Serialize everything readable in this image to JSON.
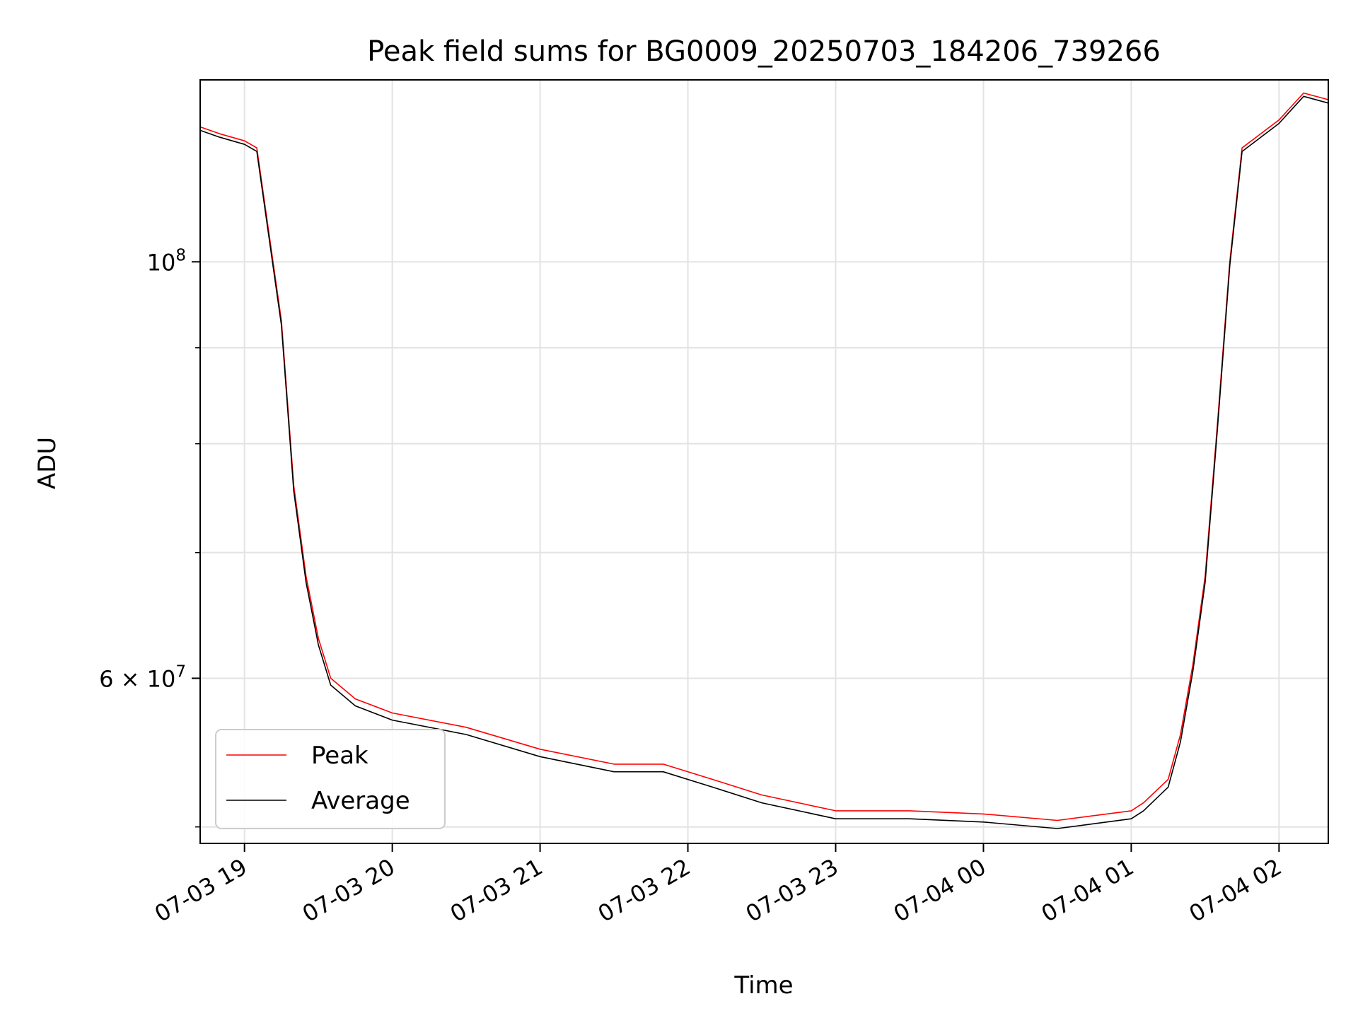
{
  "chart_data": {
    "type": "line",
    "title": "Peak field sums for BG0009_20250703_184206_739266",
    "xlabel": "Time",
    "ylabel": "ADU",
    "y_scale": "log",
    "x_range": [
      "2025-07-03 18:42",
      "2025-07-04 02:20"
    ],
    "ylim": [
      49000000,
      125000000
    ],
    "grid": true,
    "legend_position": "lower-left",
    "x_ticks": [
      {
        "t": "2025-07-03 19:00",
        "label": "07-03 19"
      },
      {
        "t": "2025-07-03 20:00",
        "label": "07-03 20"
      },
      {
        "t": "2025-07-03 21:00",
        "label": "07-03 21"
      },
      {
        "t": "2025-07-03 22:00",
        "label": "07-03 22"
      },
      {
        "t": "2025-07-03 23:00",
        "label": "07-03 23"
      },
      {
        "t": "2025-07-04 00:00",
        "label": "07-04 00"
      },
      {
        "t": "2025-07-04 01:00",
        "label": "07-04 01"
      },
      {
        "t": "2025-07-04 02:00",
        "label": "07-04 02"
      }
    ],
    "y_major_ticks": [
      {
        "value": 100000000,
        "base": "10",
        "exp": "8",
        "prefix": ""
      },
      {
        "value": 60000000,
        "base": "10",
        "exp": "7",
        "prefix": "6 × "
      }
    ],
    "y_minor_ticks": [
      50000000,
      70000000,
      80000000,
      90000000
    ],
    "series": [
      {
        "name": "Peak",
        "color": "#ff0000",
        "x": [
          "2025-07-03 18:42",
          "2025-07-03 18:50",
          "2025-07-03 19:00",
          "2025-07-03 19:05",
          "2025-07-03 19:15",
          "2025-07-03 19:20",
          "2025-07-03 19:25",
          "2025-07-03 19:30",
          "2025-07-03 19:35",
          "2025-07-03 19:45",
          "2025-07-03 20:00",
          "2025-07-03 20:30",
          "2025-07-03 21:00",
          "2025-07-03 21:30",
          "2025-07-03 21:50",
          "2025-07-03 22:10",
          "2025-07-03 22:30",
          "2025-07-03 23:00",
          "2025-07-03 23:30",
          "2025-07-04 00:00",
          "2025-07-04 00:30",
          "2025-07-04 01:00",
          "2025-07-04 01:05",
          "2025-07-04 01:15",
          "2025-07-04 01:20",
          "2025-07-04 01:25",
          "2025-07-04 01:30",
          "2025-07-04 01:35",
          "2025-07-04 01:40",
          "2025-07-04 01:45",
          "2025-07-04 02:00",
          "2025-07-04 02:05",
          "2025-07-04 02:10",
          "2025-07-04 02:20"
        ],
        "y": [
          118000000,
          117000000,
          116000000,
          115000000,
          93000000,
          76000000,
          68000000,
          63000000,
          60000000,
          58500000,
          57500000,
          56500000,
          55000000,
          54000000,
          54000000,
          53000000,
          52000000,
          51000000,
          51000000,
          50800000,
          50400000,
          51000000,
          51500000,
          53000000,
          56000000,
          61000000,
          68000000,
          82000000,
          100000000,
          115000000,
          119000000,
          121000000,
          123000000,
          122000000
        ]
      },
      {
        "name": "Average",
        "color": "#000000",
        "x": [
          "2025-07-03 18:42",
          "2025-07-03 18:50",
          "2025-07-03 19:00",
          "2025-07-03 19:05",
          "2025-07-03 19:15",
          "2025-07-03 19:20",
          "2025-07-03 19:25",
          "2025-07-03 19:30",
          "2025-07-03 19:35",
          "2025-07-03 19:45",
          "2025-07-03 20:00",
          "2025-07-03 20:30",
          "2025-07-03 21:00",
          "2025-07-03 21:30",
          "2025-07-03 21:50",
          "2025-07-03 22:10",
          "2025-07-03 22:30",
          "2025-07-03 23:00",
          "2025-07-03 23:30",
          "2025-07-04 00:00",
          "2025-07-04 00:30",
          "2025-07-04 01:00",
          "2025-07-04 01:05",
          "2025-07-04 01:15",
          "2025-07-04 01:20",
          "2025-07-04 01:25",
          "2025-07-04 01:30",
          "2025-07-04 01:35",
          "2025-07-04 01:40",
          "2025-07-04 01:45",
          "2025-07-04 02:00",
          "2025-07-04 02:05",
          "2025-07-04 02:10",
          "2025-07-04 02:20"
        ],
        "y": [
          117500000,
          116500000,
          115500000,
          114500000,
          92500000,
          75500000,
          67500000,
          62500000,
          59500000,
          58000000,
          57000000,
          56000000,
          54500000,
          53500000,
          53500000,
          52500000,
          51500000,
          50500000,
          50500000,
          50300000,
          49900000,
          50500000,
          51000000,
          52500000,
          55500000,
          60500000,
          67500000,
          81500000,
          99500000,
          114500000,
          118500000,
          120500000,
          122500000,
          121500000
        ]
      }
    ]
  }
}
